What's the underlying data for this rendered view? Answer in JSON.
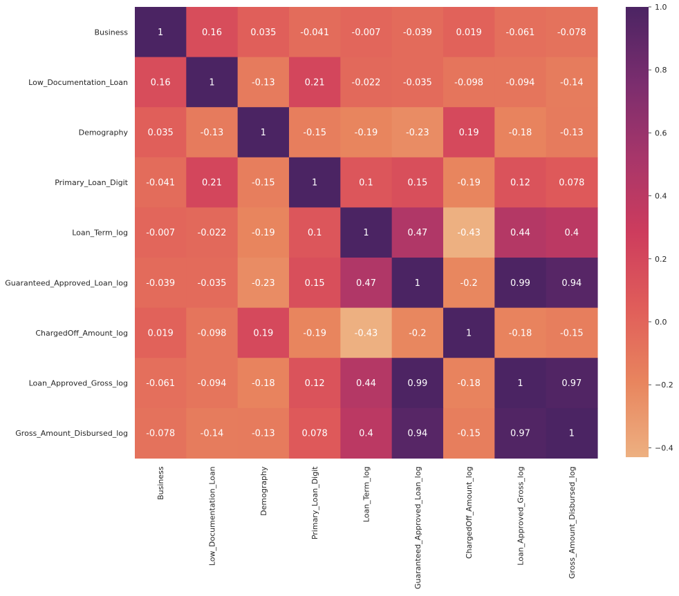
{
  "chart_data": {
    "type": "heatmap",
    "title": "",
    "xlabel": "",
    "ylabel": "",
    "labels": [
      "Business",
      "Low_Documentation_Loan",
      "Demography",
      "Primary_Loan_Digit",
      "Loan_Term_log",
      "Guaranteed_Approved_Loan_log",
      "ChargedOff_Amount_log",
      "Loan_Approved_Gross_log",
      "Gross_Amount_Disbursed_log"
    ],
    "annotations": [
      [
        "1",
        "0.16",
        "0.035",
        "-0.041",
        "-0.007",
        "-0.039",
        "0.019",
        "-0.061",
        "-0.078"
      ],
      [
        "0.16",
        "1",
        "-0.13",
        "0.21",
        "-0.022",
        "-0.035",
        "-0.098",
        "-0.094",
        "-0.14"
      ],
      [
        "0.035",
        "-0.13",
        "1",
        "-0.15",
        "-0.19",
        "-0.23",
        "0.19",
        "-0.18",
        "-0.13"
      ],
      [
        "-0.041",
        "0.21",
        "-0.15",
        "1",
        "0.1",
        "0.15",
        "-0.19",
        "0.12",
        "0.078"
      ],
      [
        "-0.007",
        "-0.022",
        "-0.19",
        "0.1",
        "1",
        "0.47",
        "-0.43",
        "0.44",
        "0.4"
      ],
      [
        "-0.039",
        "-0.035",
        "-0.23",
        "0.15",
        "0.47",
        "1",
        "-0.2",
        "0.99",
        "0.94"
      ],
      [
        "0.019",
        "-0.098",
        "0.19",
        "-0.19",
        "-0.43",
        "-0.2",
        "1",
        "-0.18",
        "-0.15"
      ],
      [
        "-0.061",
        "-0.094",
        "-0.18",
        "0.12",
        "0.44",
        "0.99",
        "-0.18",
        "1",
        "0.97"
      ],
      [
        "-0.078",
        "-0.14",
        "-0.13",
        "0.078",
        "0.4",
        "0.94",
        "-0.15",
        "0.97",
        "1"
      ]
    ],
    "colorbar": {
      "min": -0.43,
      "max": 1.0,
      "ticks": [
        1.0,
        0.8,
        0.6,
        0.4,
        0.2,
        0.0,
        -0.2,
        -0.4
      ],
      "tick_labels": [
        "1.0",
        "0.8",
        "0.6",
        "0.4",
        "0.2",
        "0.0",
        "−0.2",
        "−0.4"
      ],
      "colormap": "flare",
      "colormap_stops": [
        "#edb081",
        "#e8855e",
        "#e05d5a",
        "#cd3c5d",
        "#a7366a",
        "#7a2d6e",
        "#4b2463"
      ]
    },
    "grid": false
  }
}
